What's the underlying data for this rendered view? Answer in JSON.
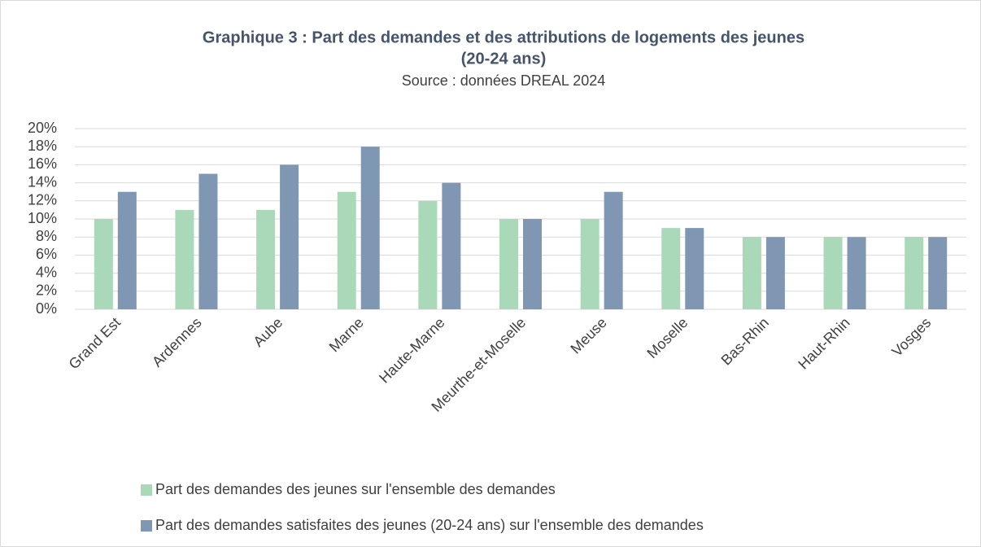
{
  "chart_data": {
    "type": "bar",
    "title": [
      "Graphique 3 : Part des demandes et des attributions de logements des jeunes",
      "(20-24 ans)"
    ],
    "subtitle": "Source : données DREAL 2024",
    "categories": [
      "Grand Est",
      "Ardennes",
      "Aube",
      "Marne",
      "Haute-Marne",
      "Meurthe-et-Moselle",
      "Meuse",
      "Moselle",
      "Bas-Rhin",
      "Haut-Rhin",
      "Vosges"
    ],
    "series": [
      {
        "name": "Part des demandes des jeunes sur l'ensemble des demandes",
        "color": "#a9d9b9",
        "values": [
          10,
          11,
          11,
          13,
          12,
          10,
          10,
          9,
          8,
          8,
          8
        ]
      },
      {
        "name": "Part des demandes satisfaites des jeunes (20-24 ans) sur l'ensemble des demandes",
        "color": "#8097b4",
        "values": [
          13,
          15,
          16,
          18,
          14,
          10,
          13,
          9,
          8,
          8,
          8
        ]
      }
    ],
    "ylim": [
      0,
      20
    ],
    "yticks": [
      {
        "value": 0,
        "label": "0%"
      },
      {
        "value": 2,
        "label": "2%"
      },
      {
        "value": 4,
        "label": "4%"
      },
      {
        "value": 6,
        "label": "6%"
      },
      {
        "value": 8,
        "label": "8%"
      },
      {
        "value": 10,
        "label": "10%"
      },
      {
        "value": 12,
        "label": "12%"
      },
      {
        "value": 14,
        "label": "14%"
      },
      {
        "value": 16,
        "label": "16%"
      },
      {
        "value": 18,
        "label": "18%"
      },
      {
        "value": 20,
        "label": "20%"
      }
    ],
    "grid": true,
    "legend": "bottom"
  }
}
